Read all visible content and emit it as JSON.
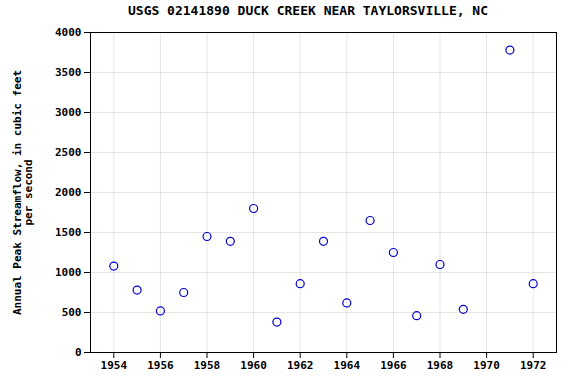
{
  "chart_data": {
    "type": "scatter",
    "title": "USGS 02141890 DUCK CREEK NEAR TAYLORSVILLE, NC",
    "ylabel": "Annual Peak Streamflow, in cubic feet\nper second",
    "x": [
      1954,
      1955,
      1956,
      1957,
      1958,
      1959,
      1960,
      1961,
      1962,
      1963,
      1964,
      1965,
      1966,
      1967,
      1968,
      1969,
      1971,
      1972
    ],
    "values": [
      1080,
      780,
      520,
      750,
      1450,
      1390,
      1800,
      380,
      860,
      1390,
      620,
      1650,
      1250,
      460,
      1100,
      540,
      3780,
      860
    ],
    "xlim": [
      1953,
      1973
    ],
    "ylim": [
      0,
      4000
    ],
    "xticks": [
      1954,
      1956,
      1958,
      1960,
      1962,
      1964,
      1966,
      1968,
      1970,
      1972
    ],
    "yticks": [
      0,
      500,
      1000,
      1500,
      2000,
      2500,
      3000,
      3500,
      4000
    ],
    "color": "#0000CC",
    "marker": "circle",
    "grid": true
  }
}
